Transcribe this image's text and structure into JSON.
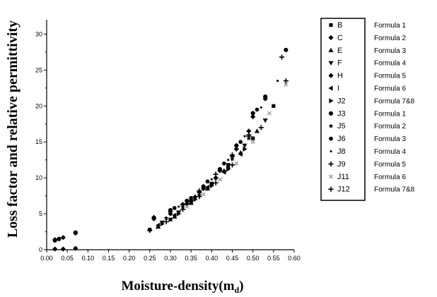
{
  "chart_data": {
    "type": "scatter",
    "title": "",
    "xlabel": "Moisture-density(m",
    "xlabel_sub": "d",
    "xlabel_end": ")",
    "ylabel": "Loss factor and relative permittivity",
    "xlim": [
      0.0,
      0.6
    ],
    "ylim": [
      0,
      32
    ],
    "x_ticks": [
      "0.00",
      "0.05",
      "0.10",
      "0.15",
      "0.20",
      "0.25",
      "0.30",
      "0.35",
      "0.40",
      "0.45",
      "0.50",
      "0.55",
      "0.60"
    ],
    "y_ticks": [
      "0",
      "5",
      "10",
      "15",
      "20",
      "25",
      "30"
    ],
    "legend_position": "right",
    "series": [
      {
        "name": "B",
        "formula": "Formula 1",
        "marker": "square",
        "color": "#000000",
        "x": [
          0.25,
          0.3,
          0.35,
          0.4,
          0.44,
          0.5,
          0.55
        ],
        "y": [
          2.8,
          4.2,
          6.8,
          9.2,
          11.5,
          15.5,
          20.0
        ]
      },
      {
        "name": "C",
        "formula": "Formula 2",
        "marker": "diamond",
        "color": "#000000",
        "x": [
          0.02,
          0.04,
          0.07,
          0.26,
          0.3,
          0.33,
          0.37,
          0.41,
          0.45,
          0.49,
          0.53
        ],
        "y": [
          0.1,
          0.1,
          0.2,
          4.5,
          5.3,
          6.3,
          8.0,
          10.0,
          13.0,
          16.5,
          21.0
        ]
      },
      {
        "name": "E",
        "formula": "Formula 3",
        "marker": "triangle-up",
        "color": "#000000",
        "x": [
          0.27,
          0.31,
          0.35,
          0.39,
          0.43,
          0.47,
          0.51
        ],
        "y": [
          3.2,
          4.6,
          6.5,
          8.5,
          11.0,
          13.5,
          16.5
        ]
      },
      {
        "name": "F",
        "formula": "Formula 4",
        "marker": "triangle-down",
        "color": "#000000",
        "x": [
          0.28,
          0.32,
          0.36,
          0.4,
          0.44,
          0.48,
          0.53
        ],
        "y": [
          3.8,
          5.2,
          7.2,
          9.0,
          11.8,
          14.5,
          18.0
        ]
      },
      {
        "name": "H",
        "formula": "Formula 5",
        "marker": "diamond",
        "color": "#000000",
        "x": [
          0.02,
          0.04,
          0.07,
          0.26,
          0.3,
          0.34,
          0.38,
          0.42,
          0.46,
          0.5
        ],
        "y": [
          1.4,
          1.7,
          2.3,
          4.3,
          5.0,
          6.4,
          8.5,
          11.0,
          14.0,
          18.5
        ]
      },
      {
        "name": "I",
        "formula": "Formula 6",
        "marker": "triangle-left",
        "color": "#000000",
        "x": [
          0.27,
          0.31,
          0.35,
          0.39,
          0.43,
          0.47
        ],
        "y": [
          3.4,
          4.8,
          6.6,
          8.7,
          10.8,
          13.3
        ]
      },
      {
        "name": "J2",
        "formula": "Formula 7&8",
        "marker": "triangle-right",
        "color": "#000000",
        "x": [
          0.28,
          0.32,
          0.36,
          0.4,
          0.44,
          0.48
        ],
        "y": [
          3.6,
          5.0,
          7.0,
          8.9,
          11.2,
          14.0
        ]
      },
      {
        "name": "J3",
        "formula": "Formula 1",
        "marker": "circle",
        "color": "#000000",
        "x": [
          0.02,
          0.03,
          0.07,
          0.3,
          0.34,
          0.38,
          0.42,
          0.46,
          0.5,
          0.53,
          0.58
        ],
        "y": [
          1.3,
          1.5,
          2.4,
          5.5,
          6.8,
          8.8,
          11.2,
          14.5,
          19.0,
          21.3,
          27.8
        ]
      },
      {
        "name": "J5",
        "formula": "Formula 2",
        "marker": "star",
        "color": "#000000",
        "x": [
          0.29,
          0.33,
          0.37,
          0.41,
          0.45,
          0.49
        ],
        "y": [
          4.4,
          5.9,
          7.6,
          10.0,
          12.6,
          15.5
        ]
      },
      {
        "name": "J6",
        "formula": "Formula 3",
        "marker": "hexagon",
        "color": "#000000",
        "x": [
          0.31,
          0.35,
          0.39,
          0.43,
          0.47,
          0.51
        ],
        "y": [
          5.8,
          7.2,
          9.5,
          12.0,
          15.0,
          19.5
        ]
      },
      {
        "name": "J8",
        "formula": "Formula 4",
        "marker": "small-dot",
        "color": "#000000",
        "x": [
          0.32,
          0.36,
          0.4,
          0.44,
          0.48,
          0.52,
          0.56
        ],
        "y": [
          6.0,
          7.5,
          9.8,
          12.5,
          15.8,
          19.8,
          23.5
        ]
      },
      {
        "name": "J9",
        "formula": "Formula 5",
        "marker": "plus",
        "color": "#000000",
        "x": [
          0.33,
          0.37,
          0.41,
          0.45,
          0.49,
          0.52,
          0.57
        ],
        "y": [
          6.3,
          8.2,
          10.5,
          13.2,
          16.0,
          17.0,
          26.8
        ]
      },
      {
        "name": "J11",
        "formula": "Formula 6",
        "marker": "cross",
        "color": "#999999",
        "x": [
          0.34,
          0.38,
          0.42,
          0.46,
          0.5,
          0.54,
          0.58
        ],
        "y": [
          6.0,
          7.7,
          9.8,
          12.0,
          15.0,
          19.0,
          23.0
        ]
      },
      {
        "name": "J12",
        "formula": "Formula 7&8",
        "marker": "plus",
        "color": "#000000",
        "x": [
          0.25,
          0.29,
          0.33,
          0.37,
          0.41,
          0.45,
          0.49,
          0.58
        ],
        "y": [
          2.7,
          3.9,
          5.6,
          7.4,
          9.3,
          11.8,
          15.8,
          23.5
        ]
      }
    ]
  }
}
